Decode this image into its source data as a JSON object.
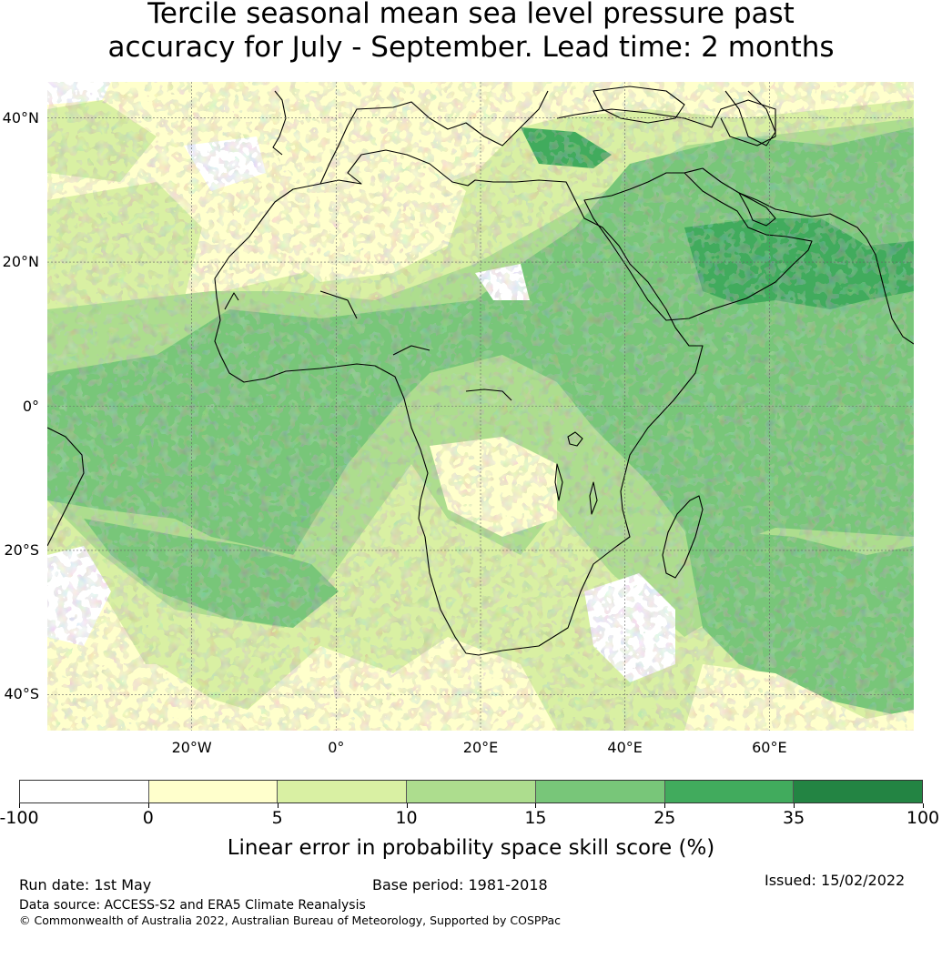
{
  "title_line1": "Tercile seasonal mean sea level pressure past",
  "title_line2": "accuracy for July - September. Lead time: 2 months",
  "map": {
    "lat_labels": [
      "40°N",
      "20°N",
      "0°",
      "20°S",
      "40°S"
    ],
    "lon_labels": [
      "20°W",
      "0°",
      "20°E",
      "40°E",
      "60°E"
    ],
    "lat_values": [
      40,
      20,
      0,
      -20,
      -40
    ],
    "lon_values": [
      -20,
      0,
      20,
      40,
      60
    ],
    "lon_range": [
      -40,
      80
    ],
    "lat_range": [
      -45,
      45
    ]
  },
  "colorbar": {
    "title": "Linear error in probability space skill score (%)",
    "tick_labels": [
      "-100",
      "0",
      "5",
      "10",
      "15",
      "25",
      "35",
      "100"
    ],
    "colors": [
      "#ffffff",
      "#ffffcc",
      "#d9f0a3",
      "#addd8e",
      "#78c679",
      "#41ab5d",
      "#238443"
    ]
  },
  "footer": {
    "run_date": "Run date: 1st May",
    "base_period": "Base period: 1981-2018",
    "issued": "Issued: 15/02/2022",
    "data_source": "Data source: ACCESS-S2 and ERA5 Climate Reanalysis",
    "copyright": "© Commonwealth of Australia 2022, Australian Bureau of Meteorology, Supported by COSPPac"
  }
}
